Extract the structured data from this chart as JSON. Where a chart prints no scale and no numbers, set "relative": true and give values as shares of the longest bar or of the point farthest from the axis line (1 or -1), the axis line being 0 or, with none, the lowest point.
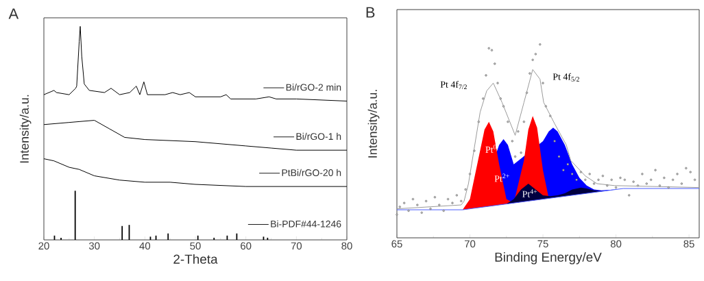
{
  "chart_data": [
    {
      "type": "line",
      "title": "A",
      "xlabel": "2-Theta",
      "ylabel": "Intensity/a.u.",
      "relative": true,
      "xlim": [
        20,
        80
      ],
      "xticks": [
        20,
        30,
        40,
        50,
        60,
        70,
        80
      ],
      "tick_labels": "x",
      "grid": false,
      "legend": "right",
      "series": [
        {
          "name": "Bi/rGO-2 min",
          "color": "#000000",
          "marker": "none",
          "x": [
            20,
            22,
            22.5,
            25,
            26.3,
            26.5,
            27,
            27.2,
            27.5,
            28,
            29,
            32,
            33.3,
            35,
            37,
            38.3,
            39,
            39.8,
            40.5,
            44,
            45.5,
            47,
            48.8,
            50,
            55,
            56.1,
            57,
            62,
            64.6,
            66,
            70,
            80
          ],
          "values": [
            0.68,
            0.7,
            0.69,
            0.68,
            0.71,
            0.72,
            0.93,
            1.0,
            0.86,
            0.73,
            0.7,
            0.69,
            0.71,
            0.68,
            0.69,
            0.72,
            0.68,
            0.74,
            0.68,
            0.68,
            0.69,
            0.68,
            0.69,
            0.67,
            0.67,
            0.68,
            0.66,
            0.66,
            0.67,
            0.66,
            0.66,
            0.65
          ]
        },
        {
          "name": "Bi/rGO-1 h",
          "color": "#000000",
          "marker": "none",
          "x": [
            20,
            25,
            30,
            33,
            36,
            40,
            50,
            60,
            65,
            70,
            80
          ],
          "values": [
            0.54,
            0.55,
            0.56,
            0.52,
            0.48,
            0.47,
            0.46,
            0.44,
            0.43,
            0.42,
            0.42
          ]
        },
        {
          "name": "PtBi/rGO-20 h",
          "color": "#000000",
          "marker": "none",
          "x": [
            20,
            22,
            25,
            27,
            30,
            35,
            40,
            45,
            50,
            60,
            70,
            80
          ],
          "values": [
            0.38,
            0.37,
            0.34,
            0.33,
            0.3,
            0.28,
            0.27,
            0.27,
            0.26,
            0.25,
            0.25,
            0.25
          ]
        },
        {
          "name": "Bi-PDF#44-1246",
          "type": "bar",
          "color": "#000000",
          "x": [
            22.1,
            23.4,
            26.2,
            35.5,
            36.9,
            41.1,
            42.2,
            44.6,
            50.5,
            53.7,
            56.3,
            58.2,
            63.5,
            64.3
          ],
          "values": [
            0.02,
            0.01,
            0.23,
            0.065,
            0.07,
            0.015,
            0.02,
            0.03,
            0.02,
            0.01,
            0.02,
            0.03,
            0.015,
            0.01
          ]
        }
      ]
    },
    {
      "type": "area",
      "title": "B",
      "xlabel": "Binding Energy/eV",
      "ylabel": "Intensity/a.u.",
      "relative": true,
      "xlim": [
        65,
        85.7
      ],
      "xticks": [
        65,
        70,
        75,
        80,
        85
      ],
      "tick_labels": "x",
      "grid": false,
      "annotations": [
        "Pt 4f$_{7/2}$",
        "Pt 4f$_{5/2}$",
        "Pt$^{0}$",
        "Pt$^{2+}$",
        "Pt$^{4+}$"
      ],
      "series": [
        {
          "type": "area",
          "color": "#0000ff",
          "x": [
            70.5,
            71,
            71.5,
            72,
            72.3,
            72.6,
            73,
            73.5,
            74,
            74.5,
            75,
            75.4,
            75.7,
            76,
            76.5,
            77,
            77.5,
            78,
            78.5,
            79,
            80
          ],
          "values": [
            0.155,
            null,
            null,
            0.48,
            0.51,
            0.48,
            0.38,
            null,
            null,
            null,
            0.5,
            0.55,
            0.57,
            0.55,
            0.48,
            0.38,
            0.31,
            0.27,
            0.25,
            0.245,
            0.25
          ]
        },
        {
          "type": "area",
          "color": "#ff0000",
          "x": [
            69.5,
            70,
            70.5,
            71,
            71.3,
            71.6,
            72,
            72.5,
            73,
            73.3,
            73.7,
            74,
            74.3,
            74.6,
            75,
            75.4
          ],
          "values": [
            0.145,
            0.2,
            0.38,
            0.56,
            0.6,
            0.55,
            0.38,
            0.2,
            0.18,
            null,
            0.4,
            0.56,
            0.63,
            0.57,
            0.35,
            0.204
          ]
        },
        {
          "type": "area",
          "color": "#000040",
          "x": [
            72.5,
            73,
            73.5,
            74,
            74.5,
            75,
            75.5,
            76,
            76.5,
            77,
            77.6,
            78,
            78.5,
            79,
            79.5
          ],
          "values": [
            0.175,
            0.2,
            0.25,
            0.28,
            0.25,
            0.22,
            0.215,
            0.22,
            0.23,
            0.25,
            0.26,
            0.255,
            0.245,
            0.242,
            0.245
          ]
        },
        {
          "type": "line",
          "color": "#4a5cff",
          "marker": "none",
          "x": [
            65,
            69.5,
            80.5,
            85.7
          ],
          "values": [
            0.145,
            0.145,
            0.255,
            0.255
          ]
        },
        {
          "type": "line",
          "color": "#9a9a9a",
          "marker": "none",
          "x": [
            65,
            69.4,
            69.6,
            69.9,
            70.7,
            71.15,
            71.6,
            72.2,
            73.1,
            73.7,
            74.3,
            74.8,
            75.05,
            75.8,
            76.6,
            76.9,
            77.9,
            78.7,
            79.9,
            85.7
          ],
          "values": [
            0.15,
            0.17,
            0.19,
            0.28,
            0.65,
            0.76,
            0.8,
            0.7,
            0.53,
            0.7,
            0.87,
            0.82,
            0.7,
            0.59,
            0.48,
            0.4,
            0.32,
            0.28,
            0.27,
            0.26
          ]
        },
        {
          "type": "scatter",
          "color": "#555555",
          "marker": "circle",
          "x": [
            65.0,
            65.2,
            65.5,
            65.8,
            66.1,
            66.4,
            66.7,
            67.0,
            67.3,
            67.6,
            67.9,
            68.2,
            68.5,
            68.8,
            69.1,
            69.4,
            69.7,
            70.0,
            70.3,
            70.6,
            70.9,
            71.1,
            71.3,
            71.5,
            71.7,
            71.9,
            72.1,
            72.3,
            72.6,
            72.9,
            73.1,
            73.3,
            73.5,
            73.7,
            73.9,
            74.1,
            74.3,
            74.5,
            74.8,
            75.0,
            75.2,
            75.5,
            75.8,
            76.1,
            76.4,
            76.7,
            77.0,
            77.3,
            77.6,
            77.9,
            78.2,
            78.5,
            78.8,
            79.1,
            79.4,
            79.7,
            80.0,
            80.3,
            80.6,
            80.9,
            81.2,
            81.5,
            81.8,
            82.1,
            82.4,
            82.7,
            83.0,
            83.3,
            83.6,
            83.9,
            84.2,
            84.5,
            84.8,
            85.1,
            85.4
          ],
          "values": [
            0.12,
            0.16,
            0.18,
            0.14,
            0.2,
            0.17,
            0.13,
            0.19,
            0.15,
            0.21,
            0.17,
            0.14,
            0.2,
            0.18,
            0.22,
            0.19,
            0.25,
            0.33,
            0.45,
            0.6,
            0.72,
            0.84,
            0.98,
            0.97,
            0.9,
            0.8,
            0.72,
            0.68,
            0.6,
            0.5,
            0.42,
            0.55,
            0.44,
            0.6,
            0.75,
            0.85,
            0.92,
            0.95,
            1.0,
            0.8,
            0.68,
            0.63,
            0.5,
            0.42,
            0.35,
            0.38,
            0.33,
            0.3,
            0.34,
            0.3,
            0.33,
            0.28,
            0.3,
            0.32,
            0.27,
            0.3,
            0.26,
            0.31,
            0.3,
            0.22,
            0.29,
            0.27,
            0.33,
            0.28,
            0.3,
            0.35,
            0.27,
            0.31,
            0.26,
            0.3,
            0.33,
            0.28,
            0.36,
            0.34,
            0.3
          ]
        }
      ]
    }
  ]
}
